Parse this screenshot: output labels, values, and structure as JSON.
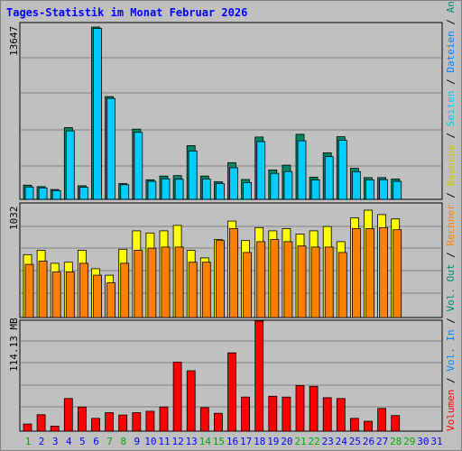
{
  "chart_data": {
    "type": "bar",
    "title": "Tages-Statistik im Monat Februar 2026",
    "categories": [
      "1",
      "2",
      "3",
      "4",
      "5",
      "6",
      "7",
      "8",
      "9",
      "10",
      "11",
      "12",
      "13",
      "14",
      "15",
      "16",
      "17",
      "18",
      "19",
      "20",
      "21",
      "22",
      "23",
      "24",
      "25",
      "26",
      "27",
      "28",
      "29",
      "30",
      "31"
    ],
    "weekend_days": [
      "1",
      "7",
      "8",
      "14",
      "15",
      "21",
      "22",
      "28",
      "29"
    ],
    "panels": [
      {
        "id": "requests",
        "ymax_label": "13647",
        "ylim": [
          0,
          13647
        ],
        "series": [
          {
            "name": "Anfragen",
            "color": "#008866",
            "values": [
              1120,
              1010,
              780,
              5680,
              1080,
              13647,
              8140,
              1250,
              5560,
              1550,
              1840,
              1880,
              4260,
              1840,
              1390,
              2910,
              1570,
              4940,
              2330,
              2710,
              5150,
              1760,
              3690,
              4960,
              2460,
              1720,
              1720,
              1610,
              null,
              null,
              null
            ]
          },
          {
            "name": "Dateien",
            "color": "#0080ff",
            "values": []
          },
          {
            "name": "Seiten",
            "color": "#00ccff",
            "values": [
              980,
              910,
              690,
              5420,
              960,
              13550,
              7990,
              1160,
              5310,
              1430,
              1620,
              1590,
              3840,
              1610,
              1240,
              2500,
              1330,
              4570,
              2060,
              2200,
              4640,
              1540,
              3390,
              4680,
              2190,
              1540,
              1560,
              1430,
              null,
              null,
              null
            ]
          }
        ]
      },
      {
        "id": "visits",
        "ymax_label": "1032",
        "ylim": [
          0,
          1032
        ],
        "series": [
          {
            "name": "Besuche",
            "color": "#ffff00",
            "values": [
              580,
              620,
              500,
              510,
              620,
              450,
              390,
              630,
              800,
              780,
              800,
              850,
              620,
              550,
              720,
              890,
              710,
              830,
              800,
              820,
              770,
              800,
              840,
              700,
              920,
              990,
              950,
              910,
              null,
              null,
              null
            ]
          },
          {
            "name": "Rechner",
            "color": "#ff8000",
            "values": [
              490,
              520,
              420,
              420,
              500,
              390,
              320,
              500,
              620,
              640,
              650,
              650,
              510,
              510,
              710,
              820,
              600,
              700,
              720,
              700,
              660,
              650,
              650,
              600,
              820,
              820,
              830,
              810,
              null,
              null,
              null
            ]
          }
        ]
      },
      {
        "id": "volume",
        "ymax_label": "114.13 MB",
        "ylim": [
          0,
          114.13
        ],
        "series": [
          {
            "name": "Vol. Out",
            "color": "#008866",
            "values": []
          },
          {
            "name": "Vol. In",
            "color": "#0080ff",
            "values": []
          },
          {
            "name": "Volumen",
            "color": "#ff0000",
            "values": [
              7.4,
              17.0,
              5.2,
              33.9,
              25.1,
              13.3,
              19.2,
              16.7,
              19.2,
              20.7,
              25.1,
              71.6,
              62.7,
              24.4,
              18.5,
              81.2,
              35.4,
              114.13,
              36.2,
              35.4,
              47.2,
              46.5,
              34.7,
              33.9,
              13.3,
              10.3,
              23.6,
              16.2,
              null,
              null,
              null
            ]
          }
        ]
      }
    ],
    "legend_right": [
      {
        "text": "Volumen",
        "color": "#ff0000"
      },
      {
        "text": " / ",
        "color": "#000000"
      },
      {
        "text": "Vol. In",
        "color": "#0080ff"
      },
      {
        "text": " / ",
        "color": "#000000"
      },
      {
        "text": "Vol. Out",
        "color": "#008866"
      },
      {
        "text": " / ",
        "color": "#000000"
      },
      {
        "text": "Rechner",
        "color": "#ff8000"
      },
      {
        "text": " / ",
        "color": "#000000"
      },
      {
        "text": "Besuche",
        "color": "#cccc00"
      },
      {
        "text": " / ",
        "color": "#000000"
      },
      {
        "text": "Seiten",
        "color": "#00ccff"
      },
      {
        "text": " / ",
        "color": "#000000"
      },
      {
        "text": "Dateien",
        "color": "#0080ff"
      },
      {
        "text": " / ",
        "color": "#000000"
      },
      {
        "text": "Anfragen",
        "color": "#008866"
      }
    ],
    "grid": true,
    "colors": {
      "background": "#c0c0c0",
      "grid": "#808080",
      "weekday_label": "#0000ff",
      "weekend_label": "#00aa00"
    }
  }
}
